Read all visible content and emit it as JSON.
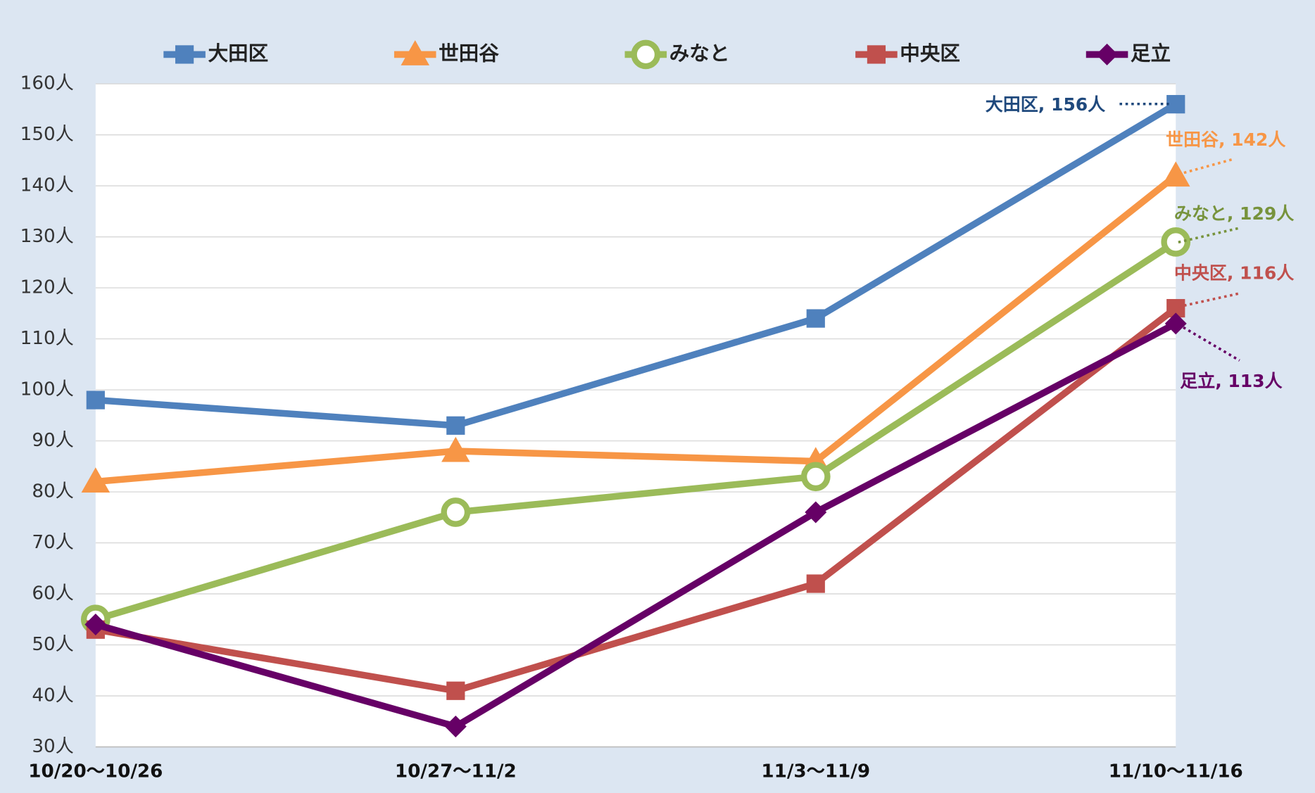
{
  "chart_data": {
    "type": "line",
    "categories": [
      "10/20～10/26",
      "10/27～11/2",
      "11/3～11/9",
      "11/10～11/16"
    ],
    "series": [
      {
        "name": "大田区",
        "color": "#4f81bd",
        "marker": "square",
        "values": [
          98,
          93,
          114,
          156
        ],
        "value_labels": [
          null,
          null,
          null,
          "大田区, 156人"
        ]
      },
      {
        "name": "世田谷",
        "color": "#f79646",
        "marker": "triangle",
        "values": [
          82,
          88,
          86,
          142
        ],
        "value_labels": [
          null,
          null,
          null,
          "世田谷, 142人"
        ]
      },
      {
        "name": "みなと",
        "color": "#9bbb59",
        "marker": "circle",
        "values": [
          55,
          76,
          83,
          129
        ],
        "value_labels": [
          null,
          null,
          null,
          "みなと, 129人"
        ]
      },
      {
        "name": "中央区",
        "color": "#c0504d",
        "marker": "square",
        "values": [
          53,
          41,
          62,
          116
        ],
        "value_labels": [
          null,
          null,
          null,
          "中央区, 116人"
        ]
      },
      {
        "name": "足立",
        "color": "#660066",
        "marker": "diamond",
        "values": [
          54,
          34,
          76,
          113
        ],
        "value_labels": [
          null,
          null,
          null,
          "足立, 113人"
        ]
      }
    ],
    "ylim": [
      30,
      160
    ],
    "yticks": [
      {
        "value": 30,
        "label": "30人"
      },
      {
        "value": 40,
        "label": "40人"
      },
      {
        "value": 50,
        "label": "50人"
      },
      {
        "value": 60,
        "label": "60人"
      },
      {
        "value": 70,
        "label": "70人"
      },
      {
        "value": 80,
        "label": "80人"
      },
      {
        "value": 90,
        "label": "90人"
      },
      {
        "value": 100,
        "label": "100人"
      },
      {
        "value": 110,
        "label": "110人"
      },
      {
        "value": 120,
        "label": "120人"
      },
      {
        "value": 130,
        "label": "130人"
      },
      {
        "value": 140,
        "label": "140人"
      },
      {
        "value": 150,
        "label": "150人"
      },
      {
        "value": 160,
        "label": "160人"
      }
    ],
    "grid": true,
    "legend": "top"
  }
}
